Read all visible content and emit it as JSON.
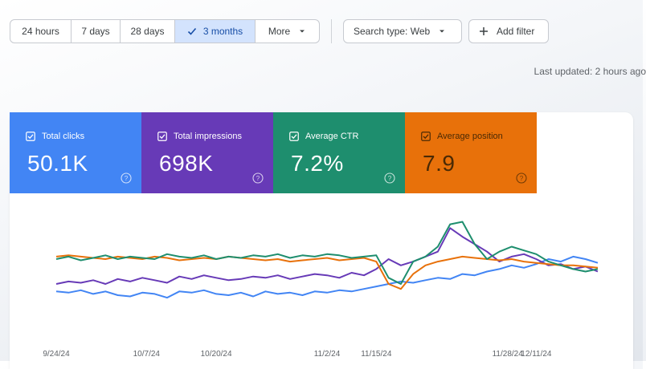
{
  "filters": {
    "date_ranges": [
      {
        "label": "24 hours",
        "active": false
      },
      {
        "label": "7 days",
        "active": false
      },
      {
        "label": "28 days",
        "active": false
      },
      {
        "label": "3 months",
        "active": true
      },
      {
        "label": "More",
        "active": false
      }
    ],
    "search_type": "Search type: Web",
    "add_filter": "Add filter"
  },
  "last_updated": "Last updated: 2 hours ago",
  "metrics": [
    {
      "label": "Total clicks",
      "value": "50.1K",
      "color": "#4285f4",
      "checked": true
    },
    {
      "label": "Total impressions",
      "value": "698K",
      "color": "#673ab7",
      "checked": true
    },
    {
      "label": "Average CTR",
      "value": "7.2%",
      "color": "#1e8e6e",
      "checked": true
    },
    {
      "label": "Average position",
      "value": "7.9",
      "color": "#e8710a",
      "checked": true
    }
  ],
  "chart_data": {
    "type": "line",
    "x": [
      "9/24/24",
      "9/26/24",
      "9/28/24",
      "9/30/24",
      "10/2/24",
      "10/4/24",
      "10/6/24",
      "10/8/24",
      "10/10/24",
      "10/12/24",
      "10/14/24",
      "10/16/24",
      "10/18/24",
      "10/20/24",
      "10/22/24",
      "10/24/24",
      "10/26/24",
      "10/28/24",
      "10/30/24",
      "11/1/24",
      "11/3/24",
      "11/5/24",
      "11/7/24",
      "11/9/24",
      "11/11/24",
      "11/13/24",
      "11/15/24",
      "11/17/24",
      "11/19/24",
      "11/21/24",
      "11/23/24",
      "11/25/24",
      "11/27/24",
      "11/29/24",
      "12/1/24",
      "12/3/24",
      "12/5/24",
      "12/7/24",
      "12/9/24",
      "12/11/24",
      "12/13/24",
      "12/15/24",
      "12/17/24",
      "12/19/24",
      "12/21/24"
    ],
    "x_ticks": [
      "9/24/24",
      "10/7/24",
      "10/20/24",
      "11/2/24",
      "11/15/24",
      "11/28/24",
      "12/11/24"
    ],
    "normalized": true,
    "series": [
      {
        "name": "Total clicks",
        "color": "#4285f4",
        "values": [
          34,
          33,
          35,
          32,
          34,
          31,
          30,
          33,
          32,
          29,
          34,
          33,
          35,
          32,
          31,
          33,
          30,
          34,
          32,
          33,
          31,
          34,
          33,
          35,
          34,
          36,
          38,
          40,
          42,
          41,
          43,
          45,
          44,
          48,
          47,
          50,
          52,
          55,
          53,
          56,
          60,
          58,
          62,
          60,
          57
        ]
      },
      {
        "name": "Total impressions",
        "color": "#673ab7",
        "values": [
          40,
          42,
          41,
          43,
          40,
          44,
          42,
          45,
          43,
          41,
          46,
          44,
          47,
          45,
          43,
          44,
          46,
          45,
          47,
          44,
          46,
          48,
          47,
          45,
          49,
          47,
          52,
          60,
          55,
          58,
          62,
          66,
          85,
          78,
          72,
          66,
          58,
          62,
          64,
          60,
          55,
          56,
          52,
          54,
          50
        ]
      },
      {
        "name": "Average CTR",
        "color": "#1e8e6e",
        "values": [
          60,
          62,
          59,
          61,
          63,
          60,
          62,
          61,
          60,
          64,
          62,
          61,
          63,
          60,
          62,
          61,
          63,
          62,
          64,
          61,
          63,
          62,
          64,
          63,
          61,
          62,
          63,
          45,
          40,
          58,
          62,
          70,
          88,
          90,
          72,
          60,
          66,
          70,
          67,
          64,
          58,
          55,
          52,
          50,
          52
        ]
      },
      {
        "name": "Average position",
        "color": "#e8710a",
        "values": [
          62,
          63,
          62,
          61,
          60,
          62,
          61,
          60,
          62,
          61,
          59,
          60,
          61,
          60,
          62,
          61,
          60,
          59,
          60,
          58,
          59,
          60,
          61,
          59,
          60,
          61,
          58,
          40,
          36,
          48,
          55,
          58,
          60,
          62,
          61,
          60,
          59,
          60,
          58,
          57,
          56,
          55,
          55,
          54,
          53
        ]
      }
    ]
  }
}
